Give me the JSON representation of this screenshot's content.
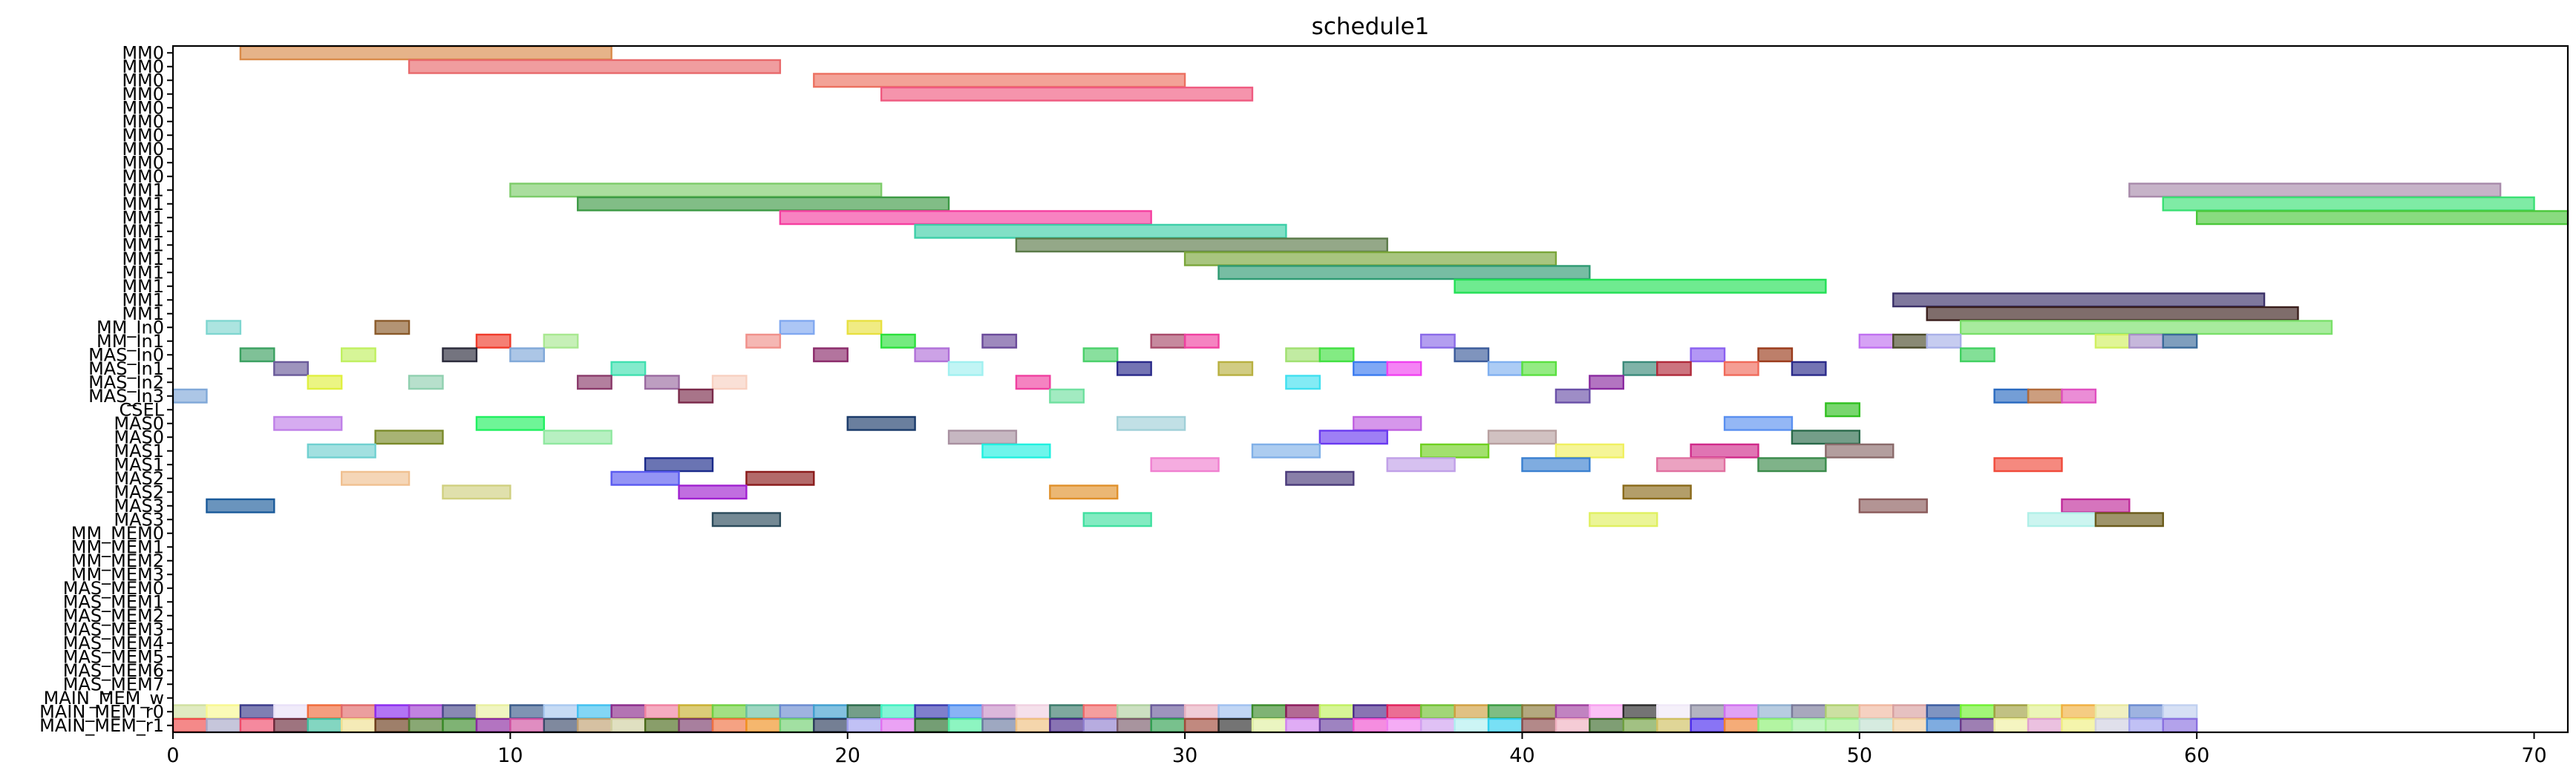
{
  "chart_data": {
    "type": "gantt",
    "title": "schedule1",
    "xlim": [
      0,
      71
    ],
    "xticks": [
      0,
      10,
      20,
      30,
      40,
      50,
      60,
      70
    ],
    "rows": [
      "MM0",
      "MM0",
      "MM0",
      "MM0",
      "MM0",
      "MM0",
      "MM0",
      "MM0",
      "MM0",
      "MM0",
      "MM1",
      "MM1",
      "MM1",
      "MM1",
      "MM1",
      "MM1",
      "MM1",
      "MM1",
      "MM1",
      "MM1",
      "MM_In0",
      "MM_In1",
      "MAS_In0",
      "MAS_In1",
      "MAS_In2",
      "MAS_In3",
      "CSEL",
      "MAS0",
      "MAS0",
      "MAS1",
      "MAS1",
      "MAS2",
      "MAS2",
      "MAS3",
      "MAS3",
      "MM_MEM0",
      "MM_MEM1",
      "MM_MEM2",
      "MM_MEM3",
      "MAS_MEM0",
      "MAS_MEM1",
      "MAS_MEM2",
      "MAS_MEM3",
      "MAS_MEM4",
      "MAS_MEM5",
      "MAS_MEM6",
      "MAS_MEM7",
      "MAIN_MEM_w",
      "MAIN_MEM_r0",
      "MAIN_MEM_r1"
    ],
    "tasks": [
      {
        "row": 0,
        "start": 2,
        "end": 13,
        "color": "#d98b4a"
      },
      {
        "row": 1,
        "start": 7,
        "end": 18,
        "color": "#e8696b"
      },
      {
        "row": 2,
        "start": 19,
        "end": 30,
        "color": "#ec7060"
      },
      {
        "row": 3,
        "start": 21,
        "end": 32,
        "color": "#ef5a80"
      },
      {
        "row": 10,
        "start": 10,
        "end": 21,
        "color": "#7dcc6a"
      },
      {
        "row": 11,
        "start": 12,
        "end": 23,
        "color": "#3d9a45"
      },
      {
        "row": 12,
        "start": 18,
        "end": 29,
        "color": "#f53fa0"
      },
      {
        "row": 13,
        "start": 22,
        "end": 33,
        "color": "#3dcfa8"
      },
      {
        "row": 14,
        "start": 25,
        "end": 36,
        "color": "#5a7a48"
      },
      {
        "row": 15,
        "start": 30,
        "end": 41,
        "color": "#7aa63a"
      },
      {
        "row": 16,
        "start": 31,
        "end": 42,
        "color": "#2e9a72"
      },
      {
        "row": 17,
        "start": 38,
        "end": 49,
        "color": "#22e055"
      },
      {
        "row": 18,
        "start": 51,
        "end": 62,
        "color": "#3a3068"
      },
      {
        "row": 19,
        "start": 52,
        "end": 63,
        "color": "#3a1f1c"
      },
      {
        "row": 10,
        "start": 58,
        "end": 69,
        "color": "#a88aaa"
      },
      {
        "row": 11,
        "start": 59,
        "end": 70,
        "color": "#3ae074"
      },
      {
        "row": 12,
        "start": 60,
        "end": 71,
        "color": "#4ac83a"
      },
      {
        "row": 20,
        "start": 53,
        "end": 64,
        "color": "#7ae06a"
      },
      {
        "row": 20,
        "start": 1,
        "end": 2,
        "color": "#7fd6d0"
      },
      {
        "row": 20,
        "start": 6,
        "end": 7,
        "color": "#8a5a2a"
      },
      {
        "row": 20,
        "start": 18,
        "end": 19,
        "color": "#80a8f0"
      },
      {
        "row": 20,
        "start": 20,
        "end": 21,
        "color": "#e8e040"
      },
      {
        "row": 21,
        "start": 9,
        "end": 10,
        "color": "#f03a2a"
      },
      {
        "row": 21,
        "start": 11,
        "end": 12,
        "color": "#a8e890"
      },
      {
        "row": 21,
        "start": 17,
        "end": 18,
        "color": "#f0908a"
      },
      {
        "row": 21,
        "start": 21,
        "end": 22,
        "color": "#2ae03a"
      },
      {
        "row": 21,
        "start": 24,
        "end": 25,
        "color": "#6a4a9a"
      },
      {
        "row": 21,
        "start": 29,
        "end": 30,
        "color": "#a84a6a"
      },
      {
        "row": 21,
        "start": 30,
        "end": 31,
        "color": "#f040a0"
      },
      {
        "row": 21,
        "start": 37,
        "end": 38,
        "color": "#8a6ae8"
      },
      {
        "row": 21,
        "start": 50,
        "end": 51,
        "color": "#c070f0"
      },
      {
        "row": 21,
        "start": 51,
        "end": 52,
        "color": "#4a4a2a"
      },
      {
        "row": 21,
        "start": 52,
        "end": 53,
        "color": "#a8b0e8"
      },
      {
        "row": 21,
        "start": 57,
        "end": 58,
        "color": "#d0f060"
      },
      {
        "row": 21,
        "start": 58,
        "end": 59,
        "color": "#a890c8"
      },
      {
        "row": 21,
        "start": 59,
        "end": 60,
        "color": "#3a6a9a"
      },
      {
        "row": 22,
        "start": 2,
        "end": 3,
        "color": "#3aa060"
      },
      {
        "row": 22,
        "start": 5,
        "end": 6,
        "color": "#c0f060"
      },
      {
        "row": 22,
        "start": 8,
        "end": 9,
        "color": "#2a2a3a"
      },
      {
        "row": 22,
        "start": 10,
        "end": 11,
        "color": "#80a8d8"
      },
      {
        "row": 22,
        "start": 19,
        "end": 20,
        "color": "#8a2a6a"
      },
      {
        "row": 22,
        "start": 22,
        "end": 23,
        "color": "#b070d8"
      },
      {
        "row": 22,
        "start": 27,
        "end": 28,
        "color": "#4ad06a"
      },
      {
        "row": 22,
        "start": 33,
        "end": 34,
        "color": "#a0e070"
      },
      {
        "row": 22,
        "start": 34,
        "end": 35,
        "color": "#40e040"
      },
      {
        "row": 22,
        "start": 38,
        "end": 39,
        "color": "#3a5a9a"
      },
      {
        "row": 22,
        "start": 45,
        "end": 46,
        "color": "#8a60f0"
      },
      {
        "row": 22,
        "start": 47,
        "end": 48,
        "color": "#9a3a1a"
      },
      {
        "row": 22,
        "start": 53,
        "end": 54,
        "color": "#40d060"
      },
      {
        "row": 23,
        "start": 3,
        "end": 4,
        "color": "#6a5a9a"
      },
      {
        "row": 23,
        "start": 13,
        "end": 14,
        "color": "#40e0b0"
      },
      {
        "row": 23,
        "start": 23,
        "end": 24,
        "color": "#a0f0f0"
      },
      {
        "row": 23,
        "start": 28,
        "end": 29,
        "color": "#2a2a8a"
      },
      {
        "row": 23,
        "start": 31,
        "end": 32,
        "color": "#b8b040"
      },
      {
        "row": 23,
        "start": 35,
        "end": 36,
        "color": "#3a7af0"
      },
      {
        "row": 23,
        "start": 36,
        "end": 37,
        "color": "#f040f0"
      },
      {
        "row": 23,
        "start": 39,
        "end": 40,
        "color": "#80b0f0"
      },
      {
        "row": 23,
        "start": 40,
        "end": 41,
        "color": "#5ae040"
      },
      {
        "row": 23,
        "start": 43,
        "end": 44,
        "color": "#3a8a7a"
      },
      {
        "row": 23,
        "start": 44,
        "end": 45,
        "color": "#b02a3a"
      },
      {
        "row": 23,
        "start": 46,
        "end": 47,
        "color": "#f06a5a"
      },
      {
        "row": 23,
        "start": 48,
        "end": 49,
        "color": "#2a2a8a"
      },
      {
        "row": 24,
        "start": 4,
        "end": 5,
        "color": "#e0f040"
      },
      {
        "row": 24,
        "start": 7,
        "end": 8,
        "color": "#90d0b0"
      },
      {
        "row": 24,
        "start": 12,
        "end": 13,
        "color": "#8a3a6a"
      },
      {
        "row": 24,
        "start": 14,
        "end": 15,
        "color": "#9a6aa0"
      },
      {
        "row": 24,
        "start": 16,
        "end": 17,
        "color": "#f8d0c0"
      },
      {
        "row": 24,
        "start": 25,
        "end": 26,
        "color": "#f040a0"
      },
      {
        "row": 24,
        "start": 33,
        "end": 34,
        "color": "#40e0f0"
      },
      {
        "row": 24,
        "start": 42,
        "end": 43,
        "color": "#8a2aa0"
      },
      {
        "row": 25,
        "start": 0,
        "end": 1,
        "color": "#80a8d8"
      },
      {
        "row": 25,
        "start": 15,
        "end": 16,
        "color": "#7a2a4a"
      },
      {
        "row": 25,
        "start": 26,
        "end": 27,
        "color": "#70e0a0"
      },
      {
        "row": 25,
        "start": 41,
        "end": 42,
        "color": "#6a50a8"
      },
      {
        "row": 25,
        "start": 54,
        "end": 55,
        "color": "#2a6ac0"
      },
      {
        "row": 25,
        "start": 55,
        "end": 56,
        "color": "#b06a3a"
      },
      {
        "row": 25,
        "start": 56,
        "end": 57,
        "color": "#e050c0"
      },
      {
        "row": 26,
        "start": 49,
        "end": 50,
        "color": "#30c020"
      },
      {
        "row": 27,
        "start": 3,
        "end": 5,
        "color": "#c080e8"
      },
      {
        "row": 27,
        "start": 9,
        "end": 11,
        "color": "#20f060"
      },
      {
        "row": 27,
        "start": 20,
        "end": 22,
        "color": "#1a3a6a"
      },
      {
        "row": 27,
        "start": 28,
        "end": 30,
        "color": "#a0d0d8"
      },
      {
        "row": 27,
        "start": 35,
        "end": 37,
        "color": "#c060e0"
      },
      {
        "row": 27,
        "start": 46,
        "end": 48,
        "color": "#5a90f0"
      },
      {
        "row": 28,
        "start": 6,
        "end": 8,
        "color": "#7a8a2a"
      },
      {
        "row": 28,
        "start": 11,
        "end": 13,
        "color": "#90e8a0"
      },
      {
        "row": 28,
        "start": 23,
        "end": 25,
        "color": "#a890a0"
      },
      {
        "row": 28,
        "start": 34,
        "end": 36,
        "color": "#6a3af0"
      },
      {
        "row": 28,
        "start": 39,
        "end": 41,
        "color": "#b8a0a0"
      },
      {
        "row": 28,
        "start": 48,
        "end": 50,
        "color": "#2a6a4a"
      },
      {
        "row": 29,
        "start": 4,
        "end": 6,
        "color": "#70d0d0"
      },
      {
        "row": 29,
        "start": 24,
        "end": 26,
        "color": "#20f0e0"
      },
      {
        "row": 29,
        "start": 32,
        "end": 34,
        "color": "#80b0e8"
      },
      {
        "row": 29,
        "start": 37,
        "end": 39,
        "color": "#70d020"
      },
      {
        "row": 29,
        "start": 41,
        "end": 43,
        "color": "#f0f060"
      },
      {
        "row": 29,
        "start": 45,
        "end": 47,
        "color": "#d02a8a"
      },
      {
        "row": 29,
        "start": 49,
        "end": 51,
        "color": "#8a6a6a"
      },
      {
        "row": 30,
        "start": 14,
        "end": 16,
        "color": "#1a2a8a"
      },
      {
        "row": 30,
        "start": 29,
        "end": 31,
        "color": "#f080d0"
      },
      {
        "row": 30,
        "start": 36,
        "end": 38,
        "color": "#c0a0e8"
      },
      {
        "row": 30,
        "start": 40,
        "end": 42,
        "color": "#3a80d0"
      },
      {
        "row": 30,
        "start": 44,
        "end": 46,
        "color": "#e070a0"
      },
      {
        "row": 30,
        "start": 47,
        "end": 49,
        "color": "#3a8a4a"
      },
      {
        "row": 30,
        "start": 54,
        "end": 56,
        "color": "#f04a3a"
      },
      {
        "row": 31,
        "start": 5,
        "end": 7,
        "color": "#f0c090"
      },
      {
        "row": 31,
        "start": 13,
        "end": 15,
        "color": "#5a5af0"
      },
      {
        "row": 31,
        "start": 17,
        "end": 19,
        "color": "#8a1a1a"
      },
      {
        "row": 31,
        "start": 33,
        "end": 35,
        "color": "#4a3a7a"
      },
      {
        "row": 32,
        "start": 8,
        "end": 10,
        "color": "#d0d080"
      },
      {
        "row": 32,
        "start": 15,
        "end": 17,
        "color": "#a020d0"
      },
      {
        "row": 32,
        "start": 26,
        "end": 28,
        "color": "#e0902a"
      },
      {
        "row": 32,
        "start": 43,
        "end": 45,
        "color": "#8a6a1a"
      },
      {
        "row": 33,
        "start": 1,
        "end": 3,
        "color": "#1a5a9a"
      },
      {
        "row": 33,
        "start": 50,
        "end": 52,
        "color": "#8a5a5a"
      },
      {
        "row": 33,
        "start": 56,
        "end": 58,
        "color": "#c02a9a"
      },
      {
        "row": 34,
        "start": 16,
        "end": 18,
        "color": "#2a4a5a"
      },
      {
        "row": 34,
        "start": 27,
        "end": 29,
        "color": "#40e0a0"
      },
      {
        "row": 34,
        "start": 42,
        "end": 44,
        "color": "#e0f060"
      },
      {
        "row": 34,
        "start": 55,
        "end": 57,
        "color": "#b0f0e8"
      },
      {
        "row": 34,
        "start": 57,
        "end": 59,
        "color": "#6a5a1a"
      }
    ],
    "mem_rows": [
      {
        "row": 48,
        "start": 0,
        "end": 60,
        "colors": [
          "#d0e0a0",
          "#f8f890",
          "#3a3a8a",
          "#e8e0f8",
          "#f06a3a",
          "#e06a6a",
          "#8a2af0",
          "#a040d0",
          "#4a4a8a",
          "#e8f0a0",
          "#3a5a8a",
          "#a8c8f0",
          "#40c0f0",
          "#8a2a8a",
          "#f080a0",
          "#c8b030",
          "#70d040",
          "#6ac0a0",
          "#6a8ad0",
          "#40a0d0",
          "#2a6a4a",
          "#40f0c0",
          "#3a3ab0",
          "#4a8af0",
          "#c890c8",
          "#f0d0e0",
          "#3a7a6a",
          "#f06a6a",
          "#b0d0a0",
          "#6a5a9a",
          "#e8b0c0",
          "#a0c0f0",
          "#3a8a2a",
          "#8a1a5a",
          "#c0f060",
          "#4a2a8a",
          "#e0205a",
          "#70c030",
          "#d0a040",
          "#3a9a40",
          "#8a7a3a",
          "#a040a0",
          "#f8a0f0",
          "#2a2a2a",
          "#f0e8f8",
          "#8a8aa0",
          "#d070f0",
          "#90b0d0",
          "#7a7a9a",
          "#b0d070",
          "#f0b8a0",
          "#d8a0a0",
          "#3a5aa0",
          "#70f030",
          "#a0a040",
          "#e0f090",
          "#f0b040",
          "#e8e8a0",
          "#6a8ad0",
          "#c0d0f0"
        ]
      },
      {
        "row": 49,
        "start": 0,
        "end": 60,
        "colors": [
          "#f04a4a",
          "#a8a8c8",
          "#f04a6a",
          "#6a2a3a",
          "#40c0a0",
          "#f0e090",
          "#6a3a1a",
          "#4a7a2a",
          "#3a8a2a",
          "#8a2aa0",
          "#d050a0",
          "#3a4a6a",
          "#c0a070",
          "#d0d0a0",
          "#4a6a1a",
          "#7a3a6a",
          "#f07040",
          "#f09020",
          "#70d070",
          "#2a3a5a",
          "#a0a0f0",
          "#e070f0",
          "#2a6a2a",
          "#50f0a0",
          "#6a7aa0",
          "#f0c080",
          "#4a2a8a",
          "#9080d0",
          "#7a5a6a",
          "#30a050",
          "#a04a3a",
          "#2a2a2a",
          "#e0f0a0",
          "#d080f0",
          "#6a40a0",
          "#f050d0",
          "#f080f0",
          "#d0a0f0",
          "#b0f0f0",
          "#30d0f0",
          "#8a4a4a",
          "#f0b0c0",
          "#3a6a2a",
          "#70a040",
          "#d0c060",
          "#4a2af0",
          "#f08030",
          "#8af070",
          "#a0f0a0",
          "#a0f090",
          "#c0e0d0",
          "#f0d0a0",
          "#3a80d0",
          "#6a3a8a",
          "#f0f0a0",
          "#e0a0d0",
          "#f0f080",
          "#d0d0e0",
          "#a0a0f0",
          "#8a70e0"
        ]
      }
    ]
  }
}
